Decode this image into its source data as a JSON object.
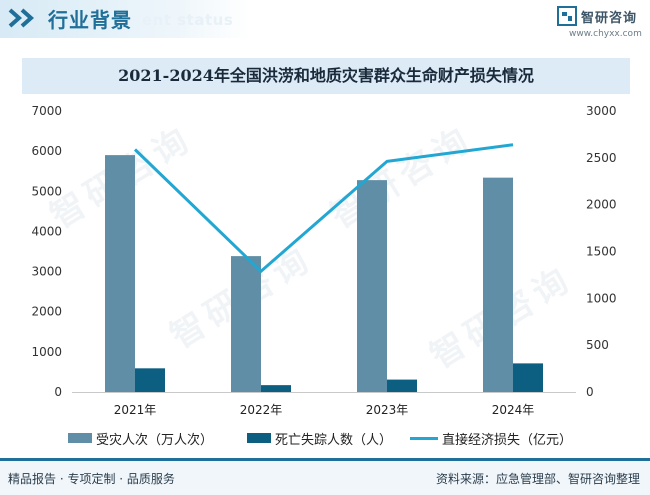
{
  "header": {
    "title": "行业背景",
    "subtitle": "ent status"
  },
  "logo": {
    "name": "智研咨询",
    "url": "www.chyxx.com"
  },
  "watermark": "智研咨询",
  "chart_data": {
    "type": "bar",
    "title": "2021-2024年全国洪涝和地质灾害群众生命财产损失情况",
    "categories": [
      "2021年",
      "2022年",
      "2023年",
      "2024年"
    ],
    "series": [
      {
        "name": "受灾人次（万人次）",
        "type": "bar",
        "axis": "left",
        "values": [
          5901,
          3385,
          5278,
          5340
        ],
        "color": "#5f8ea6"
      },
      {
        "name": "死亡失踪人数（人）",
        "type": "bar",
        "axis": "left",
        "values": [
          590,
          171,
          309,
          713
        ],
        "color": "#0d5f82"
      },
      {
        "name": "直接经济损失（亿元）",
        "type": "line",
        "axis": "right",
        "values": [
          2589,
          1289,
          2462,
          2640
        ],
        "color": "#22a7d3"
      }
    ],
    "y_left": {
      "min": 0,
      "max": 7000,
      "ticks": [
        0,
        1000,
        2000,
        3000,
        4000,
        5000,
        6000,
        7000
      ]
    },
    "y_right": {
      "min": 0,
      "max": 3000,
      "ticks": [
        0,
        500,
        1000,
        1500,
        2000,
        2500,
        3000
      ]
    },
    "grid": false,
    "legend_position": "bottom"
  },
  "footer": {
    "left": "精品报告 · 专项定制 · 品质服务",
    "right": "资料来源：应急管理部、智研咨询整理"
  }
}
